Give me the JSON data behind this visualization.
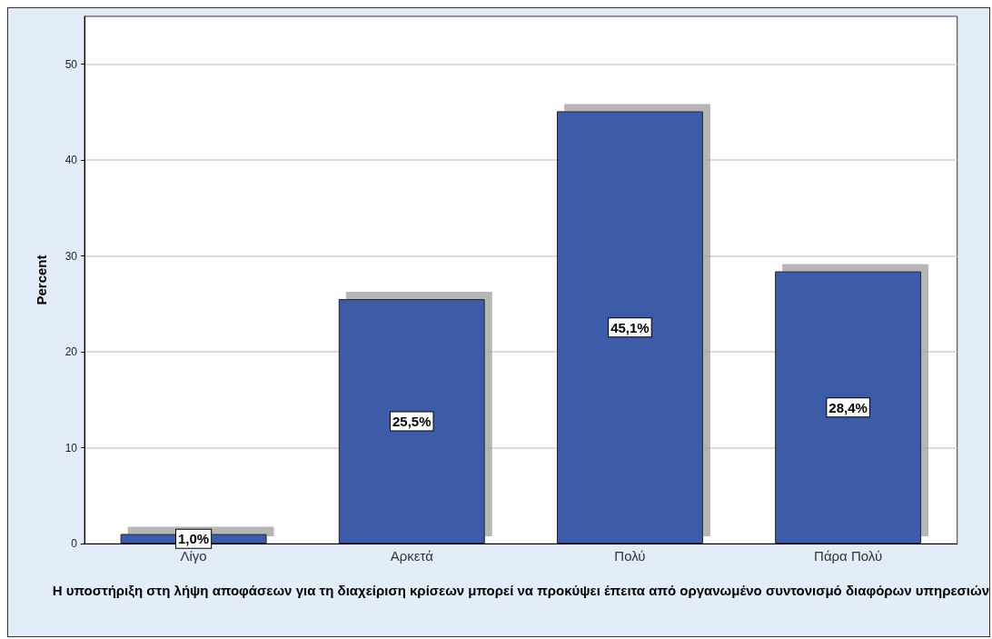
{
  "chart_data": {
    "type": "bar",
    "xlabel": "Η υποστήριξη στη λήψη αποφάσεων για τη διαχείριση κρίσεων μπορεί να προκύψει έπειτα από οργανωμένο συντονισμό διαφόρων υπηρεσιών",
    "ylabel": "Percent",
    "categories": [
      "Λίγο",
      "Αρκετά",
      "Πολύ",
      "Πάρα Πολύ"
    ],
    "values": [
      1.0,
      25.5,
      45.1,
      28.4
    ],
    "value_labels": [
      "1,0%",
      "25,5%",
      "45,1%",
      "28,4%"
    ],
    "color": "#3e5ba8",
    "ylim": [
      0,
      55
    ],
    "yticks": [
      0,
      10,
      20,
      30,
      40,
      50
    ],
    "grid": "y"
  }
}
